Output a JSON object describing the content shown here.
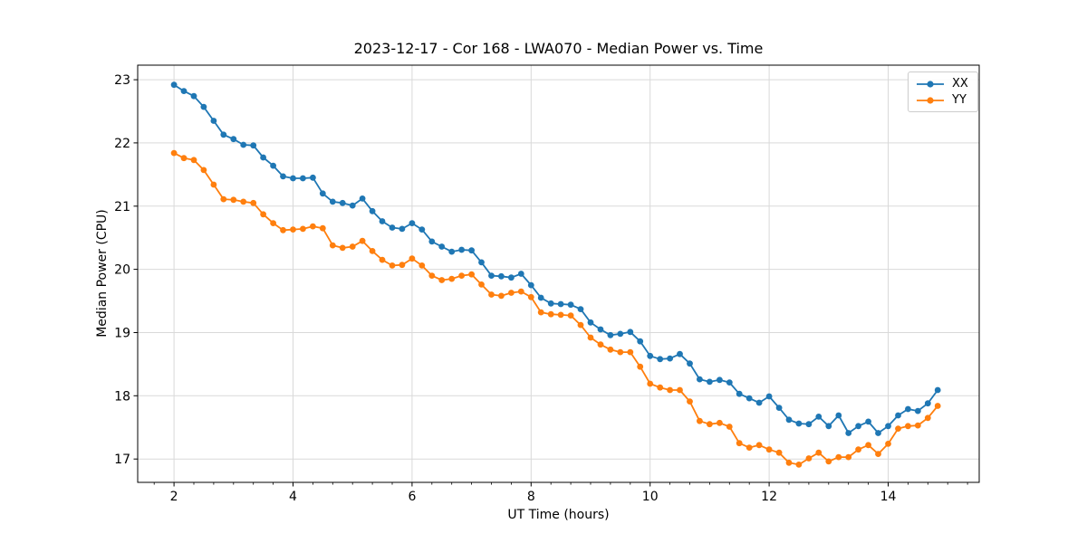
{
  "chart_data": {
    "type": "line",
    "title": "2023-12-17 - Cor 168 - LWA070 - Median Power vs. Time",
    "xlabel": "UT Time (hours)",
    "ylabel": "Median Power (CPU)",
    "xlim": [
      1.39,
      15.53
    ],
    "ylim": [
      16.63,
      23.23
    ],
    "xticks": [
      2,
      4,
      6,
      8,
      10,
      12,
      14
    ],
    "yticks": [
      17,
      18,
      19,
      20,
      21,
      22,
      23
    ],
    "minor_xtick_interval": 0.3333,
    "grid": true,
    "grid_color": "#d9d9d9",
    "legend_position": "upper right",
    "marker": "o",
    "x": [
      2.0,
      2.167,
      2.333,
      2.5,
      2.667,
      2.833,
      3.0,
      3.167,
      3.333,
      3.5,
      3.667,
      3.833,
      4.0,
      4.167,
      4.333,
      4.5,
      4.667,
      4.833,
      5.0,
      5.167,
      5.333,
      5.5,
      5.667,
      5.833,
      6.0,
      6.167,
      6.333,
      6.5,
      6.667,
      6.833,
      7.0,
      7.167,
      7.333,
      7.5,
      7.667,
      7.833,
      8.0,
      8.167,
      8.333,
      8.5,
      8.667,
      8.833,
      9.0,
      9.167,
      9.333,
      9.5,
      9.667,
      9.833,
      10.0,
      10.167,
      10.333,
      10.5,
      10.667,
      10.833,
      11.0,
      11.167,
      11.333,
      11.5,
      11.667,
      11.833,
      12.0,
      12.167,
      12.333,
      12.5,
      12.667,
      12.833,
      13.0,
      13.167,
      13.333,
      13.5,
      13.667,
      13.833,
      14.0,
      14.167,
      14.333,
      14.5,
      14.667,
      14.833
    ],
    "series": [
      {
        "name": "XX",
        "color": "#1f77b4",
        "values": [
          22.92,
          22.82,
          22.74,
          22.57,
          22.35,
          22.13,
          22.06,
          21.97,
          21.96,
          21.77,
          21.64,
          21.47,
          21.44,
          21.44,
          21.45,
          21.2,
          21.07,
          21.05,
          21.01,
          21.12,
          20.92,
          20.76,
          20.66,
          20.64,
          20.73,
          20.63,
          20.44,
          20.36,
          20.28,
          20.31,
          20.3,
          20.11,
          19.9,
          19.89,
          19.87,
          19.93,
          19.75,
          19.55,
          19.46,
          19.45,
          19.44,
          19.37,
          19.16,
          19.05,
          18.96,
          18.98,
          19.01,
          18.86,
          18.63,
          18.58,
          18.59,
          18.66,
          18.51,
          18.26,
          18.22,
          18.25,
          18.21,
          18.03,
          17.96,
          17.89,
          17.99,
          17.81,
          17.62,
          17.56,
          17.55,
          17.67,
          17.52,
          17.69,
          17.41,
          17.52,
          17.59,
          17.41,
          17.52,
          17.69,
          17.79,
          17.76,
          17.88,
          18.09
        ]
      },
      {
        "name": "YY",
        "color": "#ff7f0e",
        "values": [
          21.84,
          21.76,
          21.73,
          21.57,
          21.34,
          21.11,
          21.1,
          21.07,
          21.05,
          20.87,
          20.73,
          20.62,
          20.63,
          20.64,
          20.68,
          20.65,
          20.38,
          20.34,
          20.36,
          20.45,
          20.29,
          20.15,
          20.06,
          20.07,
          20.17,
          20.06,
          19.9,
          19.83,
          19.85,
          19.9,
          19.92,
          19.76,
          19.6,
          19.58,
          19.63,
          19.65,
          19.56,
          19.32,
          19.29,
          19.28,
          19.27,
          19.12,
          18.92,
          18.81,
          18.73,
          18.69,
          18.69,
          18.46,
          18.19,
          18.13,
          18.09,
          18.09,
          17.91,
          17.6,
          17.55,
          17.57,
          17.51,
          17.25,
          17.18,
          17.22,
          17.15,
          17.1,
          16.94,
          16.91,
          17.01,
          17.1,
          16.96,
          17.03,
          17.03,
          17.15,
          17.22,
          17.08,
          17.24,
          17.48,
          17.52,
          17.53,
          17.65,
          17.84
        ]
      }
    ]
  }
}
